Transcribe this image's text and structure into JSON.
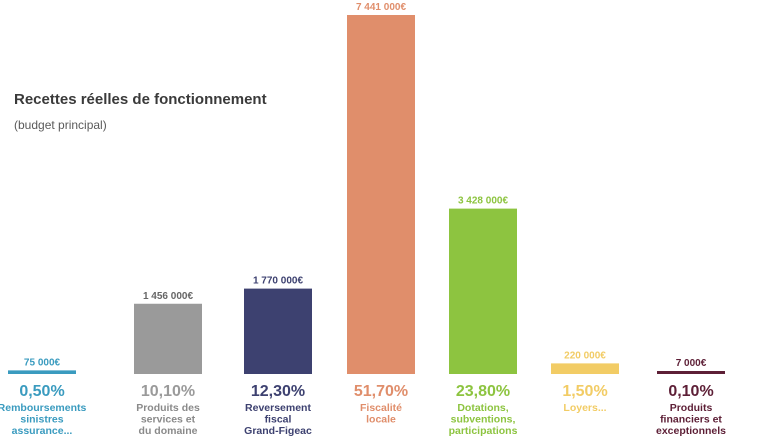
{
  "chart_data": {
    "type": "bar",
    "title": "Recettes réelles de fonctionnement",
    "subtitle": "(budget principal)",
    "xlabel": "",
    "ylabel": "",
    "ylim": [
      0,
      7441000
    ],
    "grid": false,
    "legend": "none",
    "categories": [
      "Remboursements sinistres assurance...",
      "Produits des services et du domaine",
      "Reversement fiscal Grand-Figeac",
      "Fiscalité locale",
      "Dotations, subventions, participations",
      "Loyers...",
      "Produits financiers et exceptionnels"
    ],
    "values": [
      75000,
      1456000,
      1770000,
      7441000,
      3428000,
      220000,
      7000
    ],
    "value_labels": [
      "75 000€",
      "1 456 000€",
      "1 770 000€",
      "7 441 000€",
      "3 428 000€",
      "220 000€",
      "7 000€"
    ],
    "percent_labels": [
      "0,50%",
      "10,10%",
      "12,30%",
      "51,70%",
      "23,80%",
      "1,50%",
      "0,10%"
    ],
    "label_lines": [
      [
        "Remboursements",
        "sinistres",
        "assurance..."
      ],
      [
        "Produits des",
        "services et",
        "du domaine"
      ],
      [
        "Reversement",
        "fiscal",
        "Grand-Figeac"
      ],
      [
        "Fiscalité",
        "locale"
      ],
      [
        "Dotations,",
        "subventions,",
        "participations"
      ],
      [
        "Loyers..."
      ],
      [
        "Produits",
        "financiers et",
        "exceptionnels"
      ]
    ],
    "colors": [
      "#3a9bbf",
      "#9a9a9a",
      "#3d4170",
      "#e08e6b",
      "#8dc440",
      "#f2cc65",
      "#5d1f36"
    ],
    "percent_colors": [
      "#3a9bbf",
      "#9a9a9a",
      "#3d4170",
      "#e08e6b",
      "#8dc440",
      "#f2cc65",
      "#5d1f36"
    ],
    "label_colors": [
      "#3a9bbf",
      "#8a8a8a",
      "#3d4170",
      "#e08e6b",
      "#8dc440",
      "#f2cc65",
      "#5d1f36"
    ],
    "value_label_colors": [
      "#3a9bbf",
      "#666666",
      "#3d4170",
      "#e08e6b",
      "#8dc440",
      "#f2cc65",
      "#5d1f36"
    ]
  }
}
